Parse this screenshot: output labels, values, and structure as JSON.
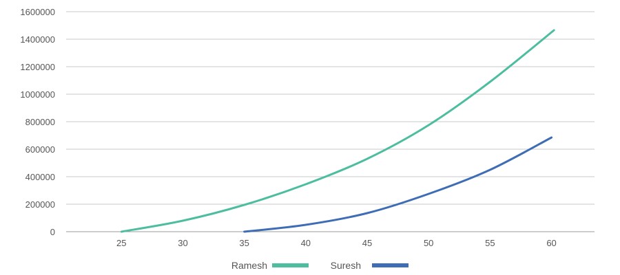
{
  "chart_data": {
    "type": "line",
    "title": "",
    "xlabel": "",
    "ylabel": "",
    "xlim": [
      20.5,
      63.5
    ],
    "ylim": [
      0,
      1600000
    ],
    "x_ticks": [
      25,
      30,
      35,
      40,
      45,
      50,
      55,
      60
    ],
    "y_ticks": [
      0,
      200000,
      400000,
      600000,
      800000,
      1000000,
      1200000,
      1400000,
      1600000
    ],
    "grid": true,
    "legend_position": "bottom",
    "series": [
      {
        "name": "Ramesh",
        "color": "#4dbda0",
        "x": [
          25,
          30,
          35,
          40,
          45,
          50,
          55,
          60.2
        ],
        "y": [
          0,
          80000,
          195000,
          345000,
          530000,
          775000,
          1090000,
          1465000
        ]
      },
      {
        "name": "Suresh",
        "color": "#3f6db5",
        "x": [
          35,
          40,
          45,
          50,
          55,
          60
        ],
        "y": [
          0,
          50000,
          135000,
          275000,
          450000,
          685000
        ]
      }
    ]
  }
}
